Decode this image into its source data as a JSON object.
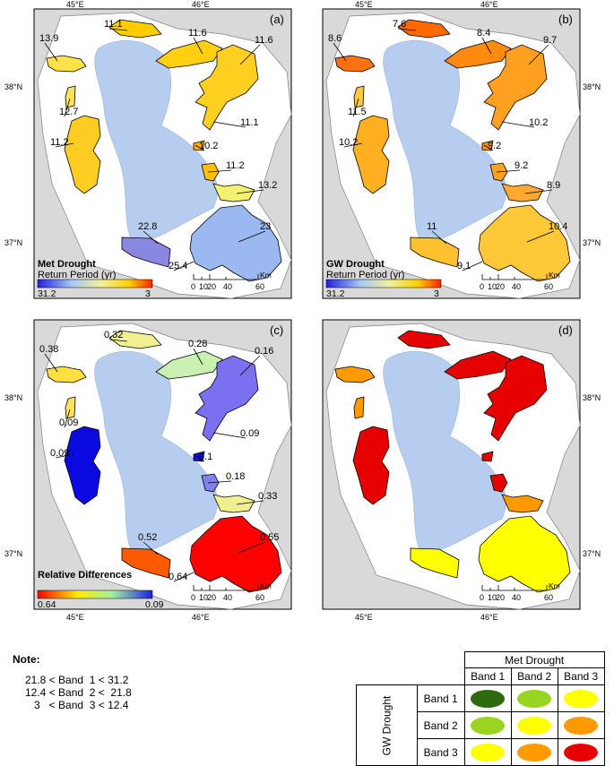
{
  "panels": [
    {
      "letter": "(a)",
      "fill": "choropleth",
      "legend_title": "Met Drought",
      "legend_subtitle": "Return Period (yr)",
      "legend_min": "31.2",
      "legend_max": "3",
      "labels": [
        "13.9",
        "11.1",
        "11.6",
        "11.6",
        "12.7",
        "11.1",
        "11.2",
        "10.2",
        "11.2",
        "13.2",
        "22.8",
        "23",
        "25.4"
      ]
    },
    {
      "letter": "(b)",
      "fill": "choropleth",
      "legend_title": "GW Drought",
      "legend_subtitle": "Return Period (yr)",
      "legend_min": "31.2",
      "legend_max": "3",
      "labels": [
        "8.6",
        "7.6",
        "8.4",
        "9.7",
        "11.5",
        "10.2",
        "10.2",
        "9.2",
        "9.2",
        "8.9",
        "11",
        "10.4",
        "9.1"
      ]
    },
    {
      "letter": "(c)",
      "fill": "relative",
      "legend_title": "Relative Differences",
      "legend_subtitle": "",
      "legend_min": "0.64",
      "legend_max": "0.09",
      "labels": [
        "0.38",
        "0.32",
        "0.28",
        "0.16",
        "0.09",
        "0.09",
        "0.09",
        "0.1",
        "0.18",
        "0.33",
        "0.52",
        "0.55",
        "0.64"
      ]
    },
    {
      "letter": "(d)",
      "fill": "bands",
      "legend_title": "",
      "legend_subtitle": "",
      "legend_min": "",
      "legend_max": "",
      "labels": []
    }
  ],
  "scalebar": {
    "ticks": [
      "0",
      "10",
      "20",
      "40",
      "60"
    ],
    "unit": "Km"
  },
  "graticule": {
    "lon_left": "45°E",
    "lon_right": "46°E",
    "lat_top": "38°N",
    "lat_bottom": "37°N"
  },
  "note": {
    "title": "Note:",
    "lines": [
      "21.8 < Band  1 < 31.2",
      "12.4 < Band  2 <  21.8",
      "   3   < Band  3 < 12.4"
    ]
  },
  "matrix": {
    "title": "Met Drought",
    "row_title": "GW Drought",
    "columns": [
      "Band 1",
      "Band 2",
      "Band 3"
    ],
    "rows": [
      "Band 1",
      "Band 2",
      "Band 3"
    ],
    "colors": {
      "dark_green": "#2e6b0e",
      "light_green": "#99d420",
      "yellow": "#ffff00",
      "orange": "#ff9900",
      "red": "#e60000"
    },
    "cells": [
      [
        "dark_green",
        "light_green",
        "yellow"
      ],
      [
        "light_green",
        "yellow",
        "orange"
      ],
      [
        "yellow",
        "orange",
        "red"
      ]
    ]
  },
  "palettes": {
    "background": "#d9d9d9",
    "lake": "#b7cdf0",
    "return_period_ramp": [
      "#2020e0",
      "#a8c8f0",
      "#f0f0a0",
      "#ffd000",
      "#ff2000"
    ],
    "relative_ramp": [
      "#ff0000",
      "#ffee00",
      "#a0f0a0",
      "#2020e0"
    ]
  }
}
